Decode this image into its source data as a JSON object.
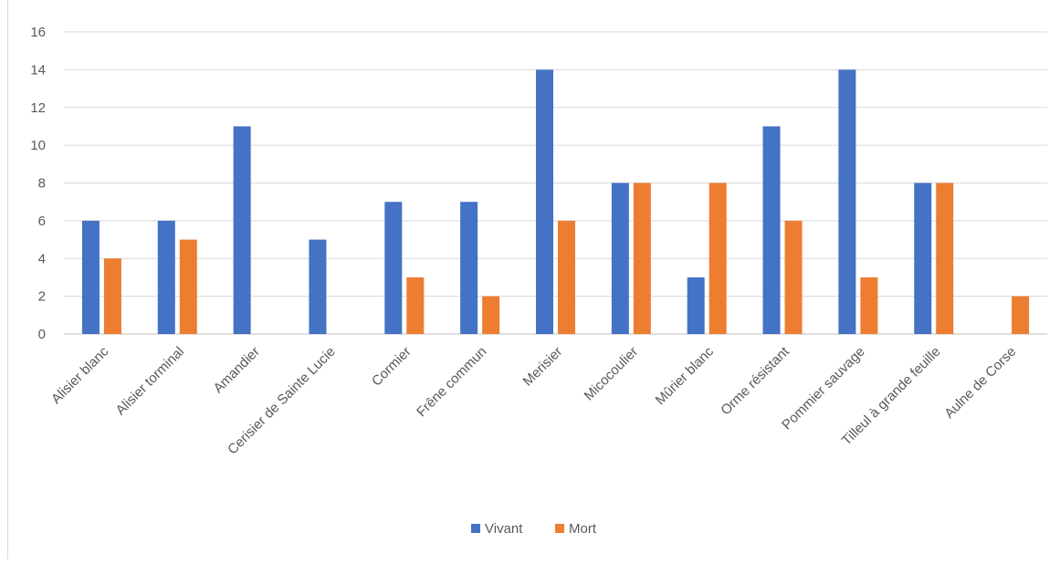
{
  "chart_data": {
    "type": "bar",
    "categories": [
      "Alisier blanc",
      "Alisier torminal",
      "Amandier",
      "Cerisier de Sainte Lucie",
      "Cormier",
      "Frêne commun",
      "Merisier",
      "Micocoulier",
      "Mûrier blanc",
      "Orme résistant",
      "Pommier sauvage",
      "Tilleul à grande feuille",
      "Aulne de Corse"
    ],
    "series": [
      {
        "name": "Vivant",
        "color": "#4472c4",
        "values": [
          6,
          6,
          11,
          5,
          7,
          7,
          14,
          8,
          3,
          11,
          14,
          8,
          0
        ]
      },
      {
        "name": "Mort",
        "color": "#ed7d31",
        "values": [
          4,
          5,
          0,
          0,
          3,
          2,
          6,
          8,
          8,
          6,
          3,
          8,
          2
        ]
      }
    ],
    "yticks": [
      "0",
      "2",
      "4",
      "6",
      "8",
      "10",
      "12",
      "14",
      "16"
    ],
    "ylim": [
      0,
      16
    ],
    "grid": true,
    "legend": "bottom",
    "title": "",
    "xlabel": "",
    "ylabel": ""
  }
}
